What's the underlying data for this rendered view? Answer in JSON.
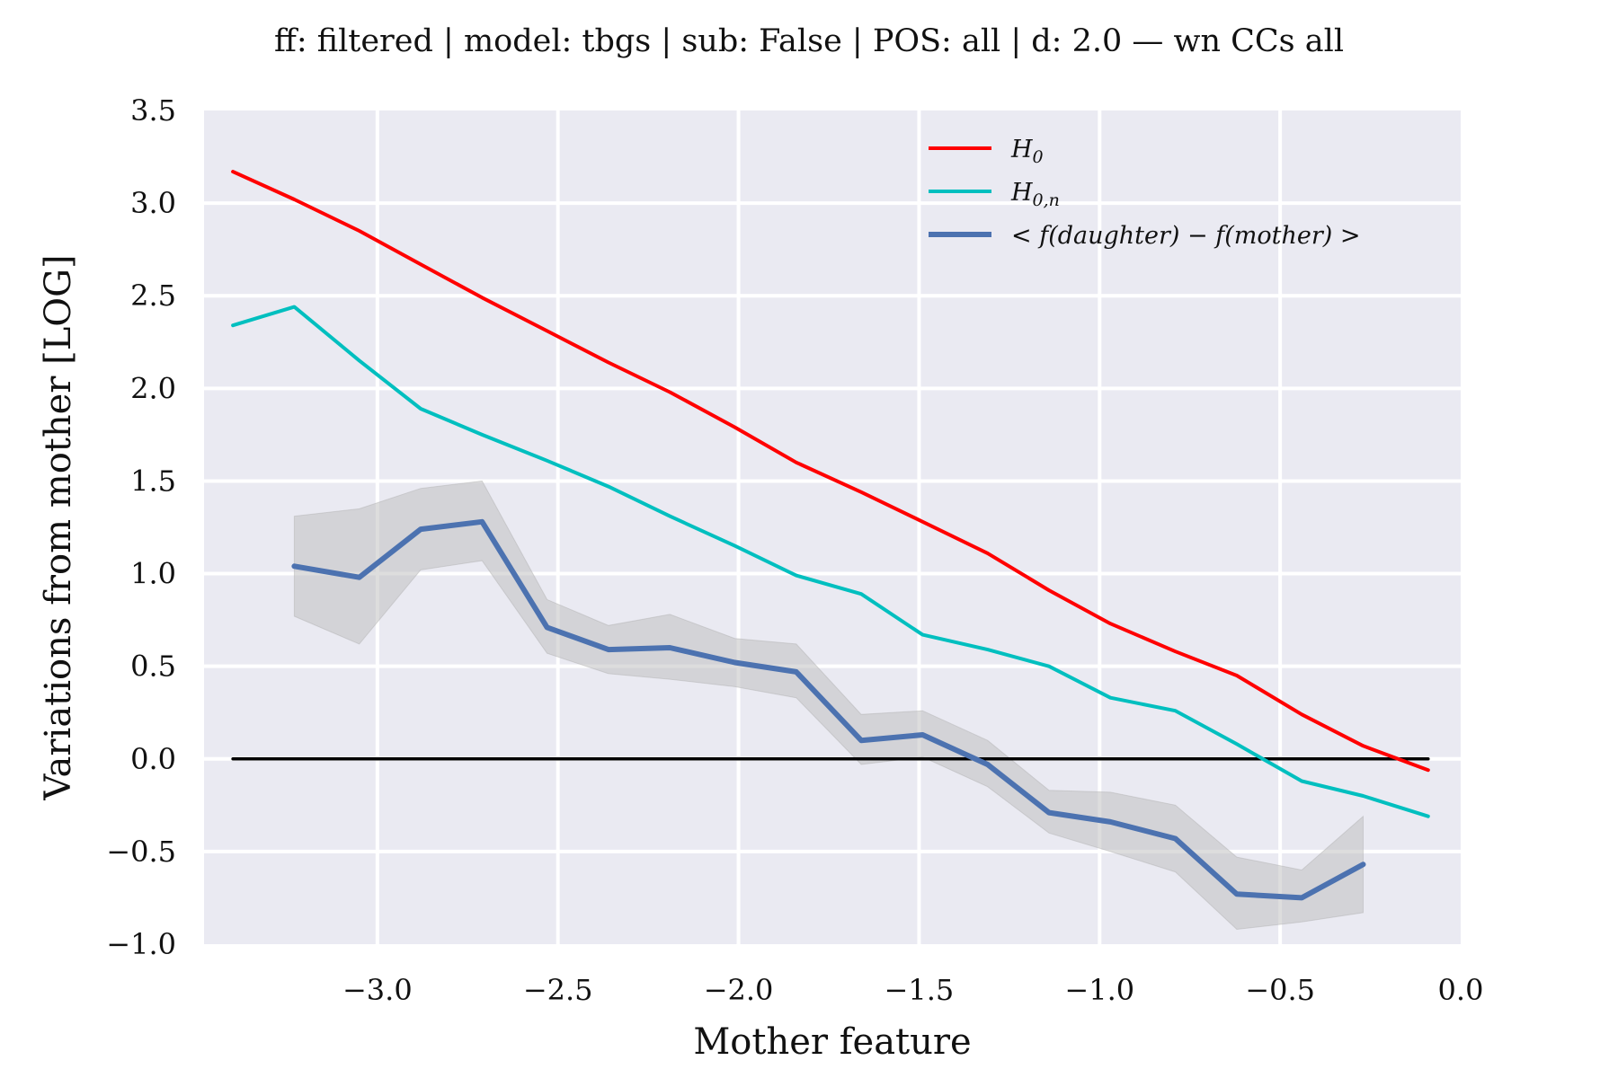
{
  "chart_data": {
    "type": "line",
    "title": "ff: filtered | model: tbgs | sub: False | POS: all | d: 2.0 — wn CCs all",
    "xlabel": "Mother feature",
    "ylabel": "Variations from mother [LOG]",
    "xlim": [
      -3.48,
      0.0
    ],
    "ylim": [
      -1.0,
      3.5
    ],
    "x_ticks": [
      -3.0,
      -2.5,
      -2.0,
      -1.5,
      -1.0,
      -0.5,
      0.0
    ],
    "x_tick_labels": [
      "−3.0",
      "−2.5",
      "−2.0",
      "−1.5",
      "−1.0",
      "−0.5",
      "0.0"
    ],
    "y_ticks": [
      -1.0,
      -0.5,
      0.0,
      0.5,
      1.0,
      1.5,
      2.0,
      2.5,
      3.0,
      3.5
    ],
    "y_tick_labels": [
      "−1.0",
      "−0.5",
      "0.0",
      "0.5",
      "1.0",
      "1.5",
      "2.0",
      "2.5",
      "3.0",
      "3.5"
    ],
    "grid": true,
    "legend_position": "top-right",
    "colors": {
      "h0": "#ff0000",
      "h0n": "#00bfbf",
      "mean": "#4c72b0",
      "band": "#bbbbbb",
      "zero_line": "#000000",
      "plot_bg": "#eaeaf2",
      "grid": "#ffffff"
    },
    "series": [
      {
        "name": "H_0",
        "legend_base": "H",
        "legend_sub": "0",
        "color": "#ff0000",
        "x": [
          -3.4,
          -3.23,
          -3.05,
          -2.88,
          -2.71,
          -2.53,
          -2.36,
          -2.19,
          -2.01,
          -1.84,
          -1.66,
          -1.49,
          -1.31,
          -1.14,
          -0.97,
          -0.79,
          -0.62,
          -0.44,
          -0.27,
          -0.09
        ],
        "y": [
          3.17,
          3.02,
          2.85,
          2.67,
          2.49,
          2.31,
          2.14,
          1.98,
          1.79,
          1.6,
          1.44,
          1.28,
          1.11,
          0.91,
          0.73,
          0.58,
          0.45,
          0.24,
          0.07,
          -0.06
        ]
      },
      {
        "name": "H_{0,n}",
        "legend_base": "H",
        "legend_sub": "0,n",
        "color": "#00bfbf",
        "x": [
          -3.4,
          -3.23,
          -3.05,
          -2.88,
          -2.71,
          -2.53,
          -2.36,
          -2.19,
          -2.01,
          -1.84,
          -1.66,
          -1.49,
          -1.31,
          -1.14,
          -0.97,
          -0.79,
          -0.62,
          -0.44,
          -0.27,
          -0.09
        ],
        "y": [
          2.34,
          2.44,
          2.15,
          1.89,
          1.75,
          1.61,
          1.47,
          1.31,
          1.15,
          0.99,
          0.89,
          0.67,
          0.59,
          0.5,
          0.33,
          0.26,
          0.08,
          -0.12,
          -0.2,
          -0.31
        ]
      },
      {
        "name": "< f(daughter) − f(mother) >",
        "legend_text": "< f(daughter) − f(mother) >",
        "color": "#4c72b0",
        "x": [
          -3.23,
          -3.05,
          -2.88,
          -2.71,
          -2.53,
          -2.36,
          -2.19,
          -2.01,
          -1.84,
          -1.66,
          -1.49,
          -1.31,
          -1.14,
          -0.97,
          -0.79,
          -0.62,
          -0.44,
          -0.27
        ],
        "y": [
          1.04,
          0.98,
          1.24,
          1.28,
          0.71,
          0.59,
          0.6,
          0.52,
          0.47,
          0.1,
          0.13,
          -0.03,
          -0.29,
          -0.34,
          -0.43,
          -0.73,
          -0.75,
          -0.57
        ],
        "band_upper": [
          1.31,
          1.35,
          1.46,
          1.5,
          0.86,
          0.72,
          0.78,
          0.65,
          0.62,
          0.24,
          0.26,
          0.1,
          -0.17,
          -0.18,
          -0.25,
          -0.53,
          -0.6,
          -0.31
        ],
        "band_lower": [
          0.77,
          0.62,
          1.02,
          1.07,
          0.57,
          0.46,
          0.43,
          0.39,
          0.33,
          -0.03,
          0.01,
          -0.15,
          -0.4,
          -0.5,
          -0.61,
          -0.92,
          -0.88,
          -0.83
        ]
      },
      {
        "name": "zero",
        "color": "#000000",
        "x": [
          -3.4,
          -0.09
        ],
        "y": [
          0.0,
          0.0
        ]
      }
    ]
  }
}
